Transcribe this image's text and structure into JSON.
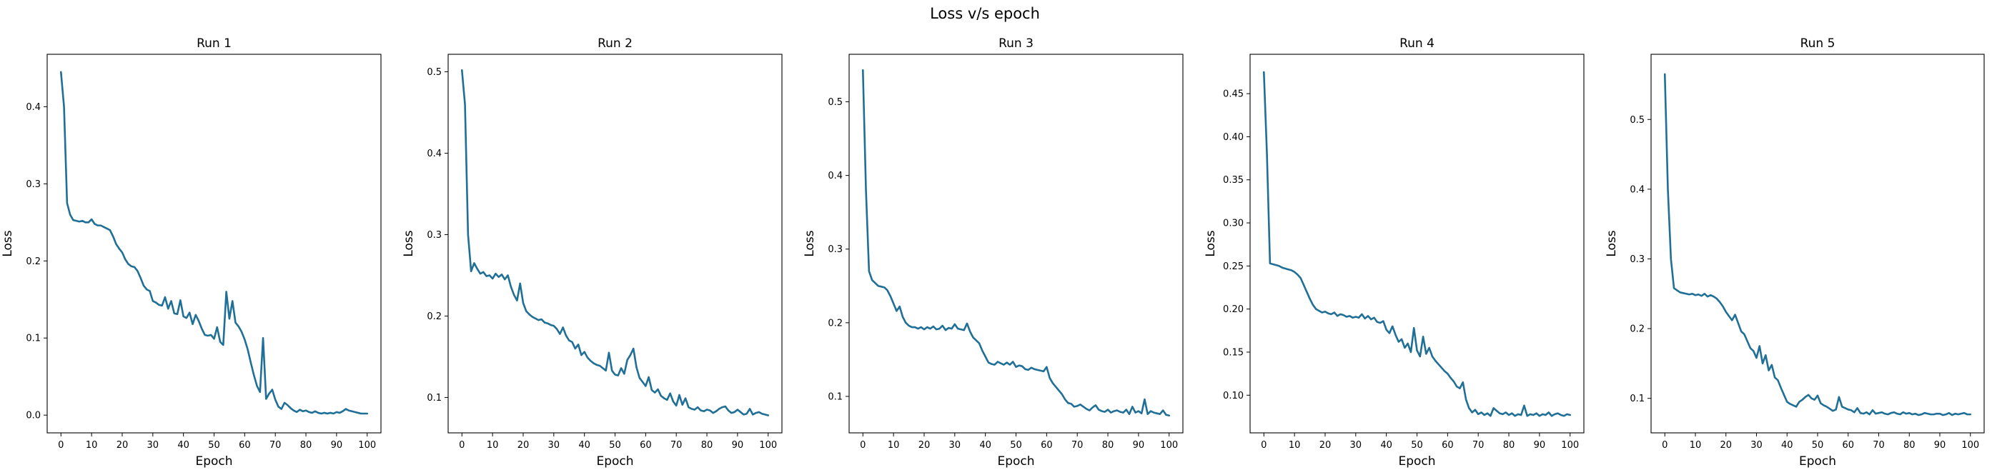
{
  "figure": {
    "title": "Loss v/s epoch"
  },
  "colors": {
    "line": "#1f6f96"
  },
  "chart_data": [
    {
      "type": "line",
      "title": "Run 1",
      "xlabel": "Epoch",
      "ylabel": "Loss",
      "xlim": [
        -4.5,
        104.5
      ],
      "ylim": [
        -0.023,
        0.468
      ],
      "xticks": [
        0,
        10,
        20,
        30,
        40,
        50,
        60,
        70,
        80,
        90,
        100
      ],
      "xtick_labels": [
        "0",
        "10",
        "20",
        "30",
        "40",
        "50",
        "60",
        "70",
        "80",
        "90",
        "100"
      ],
      "yticks": [
        0,
        0.1,
        0.2,
        0.3,
        0.4
      ],
      "ytick_labels": [
        "0.0",
        "0.1",
        "0.2",
        "0.3",
        "0.4"
      ],
      "grid": false,
      "series": [
        {
          "values": [
            0.445,
            0.4,
            0.275,
            0.26,
            0.253,
            0.252,
            0.251,
            0.252,
            0.25,
            0.25,
            0.254,
            0.248,
            0.246,
            0.246,
            0.244,
            0.242,
            0.24,
            0.232,
            0.222,
            0.216,
            0.211,
            0.202,
            0.196,
            0.193,
            0.192,
            0.187,
            0.178,
            0.168,
            0.163,
            0.161,
            0.148,
            0.146,
            0.143,
            0.142,
            0.153,
            0.138,
            0.148,
            0.132,
            0.131,
            0.149,
            0.128,
            0.126,
            0.133,
            0.118,
            0.13,
            0.122,
            0.112,
            0.104,
            0.103,
            0.104,
            0.099,
            0.114,
            0.095,
            0.091,
            0.16,
            0.125,
            0.148,
            0.12,
            0.115,
            0.108,
            0.098,
            0.085,
            0.068,
            0.052,
            0.038,
            0.03,
            0.1,
            0.021,
            0.028,
            0.033,
            0.02,
            0.011,
            0.008,
            0.016,
            0.013,
            0.009,
            0.006,
            0.004,
            0.007,
            0.005,
            0.006,
            0.004,
            0.003,
            0.005,
            0.003,
            0.002,
            0.003,
            0.002,
            0.003,
            0.002,
            0.004,
            0.003,
            0.005,
            0.008,
            0.006,
            0.005,
            0.004,
            0.003,
            0.002,
            0.002,
            0.002
          ]
        }
      ]
    },
    {
      "type": "line",
      "title": "Run 2",
      "xlabel": "Epoch",
      "ylabel": "Loss",
      "xlim": [
        -4.5,
        104.5
      ],
      "ylim": [
        0.0565,
        0.5215
      ],
      "xticks": [
        0,
        10,
        20,
        30,
        40,
        50,
        60,
        70,
        80,
        90,
        100
      ],
      "xtick_labels": [
        "0",
        "10",
        "20",
        "30",
        "40",
        "50",
        "60",
        "70",
        "80",
        "90",
        "100"
      ],
      "yticks": [
        0.1,
        0.2,
        0.3,
        0.4,
        0.5
      ],
      "ytick_labels": [
        "0.1",
        "0.2",
        "0.3",
        "0.4",
        "0.5"
      ],
      "grid": false,
      "series": [
        {
          "values": [
            0.502,
            0.46,
            0.3,
            0.255,
            0.265,
            0.258,
            0.252,
            0.254,
            0.249,
            0.25,
            0.246,
            0.252,
            0.248,
            0.251,
            0.245,
            0.25,
            0.236,
            0.226,
            0.219,
            0.24,
            0.216,
            0.206,
            0.202,
            0.199,
            0.197,
            0.195,
            0.196,
            0.192,
            0.191,
            0.189,
            0.188,
            0.184,
            0.178,
            0.186,
            0.176,
            0.17,
            0.168,
            0.16,
            0.165,
            0.152,
            0.156,
            0.149,
            0.145,
            0.142,
            0.14,
            0.139,
            0.136,
            0.133,
            0.155,
            0.133,
            0.128,
            0.127,
            0.136,
            0.129,
            0.146,
            0.152,
            0.16,
            0.137,
            0.124,
            0.119,
            0.114,
            0.125,
            0.109,
            0.106,
            0.11,
            0.102,
            0.099,
            0.097,
            0.105,
            0.095,
            0.09,
            0.103,
            0.091,
            0.099,
            0.088,
            0.086,
            0.085,
            0.088,
            0.084,
            0.083,
            0.085,
            0.084,
            0.081,
            0.083,
            0.086,
            0.088,
            0.089,
            0.084,
            0.081,
            0.082,
            0.085,
            0.082,
            0.079,
            0.08,
            0.086,
            0.079,
            0.081,
            0.082,
            0.08,
            0.079,
            0.078
          ]
        }
      ]
    },
    {
      "type": "line",
      "title": "Run 3",
      "xlabel": "Epoch",
      "ylabel": "Loss",
      "xlim": [
        -4.5,
        104.5
      ],
      "ylim": [
        0.0505,
        0.5645
      ],
      "xticks": [
        0,
        10,
        20,
        30,
        40,
        50,
        60,
        70,
        80,
        90,
        100
      ],
      "xtick_labels": [
        "0",
        "10",
        "20",
        "30",
        "40",
        "50",
        "60",
        "70",
        "80",
        "90",
        "100"
      ],
      "yticks": [
        0.1,
        0.2,
        0.3,
        0.4,
        0.5
      ],
      "ytick_labels": [
        "0.1",
        "0.2",
        "0.3",
        "0.4",
        "0.5"
      ],
      "grid": false,
      "series": [
        {
          "values": [
            0.543,
            0.38,
            0.27,
            0.258,
            0.254,
            0.25,
            0.249,
            0.248,
            0.244,
            0.236,
            0.226,
            0.216,
            0.222,
            0.208,
            0.2,
            0.196,
            0.194,
            0.194,
            0.192,
            0.194,
            0.191,
            0.194,
            0.192,
            0.195,
            0.191,
            0.192,
            0.196,
            0.19,
            0.193,
            0.192,
            0.198,
            0.192,
            0.191,
            0.19,
            0.199,
            0.188,
            0.18,
            0.176,
            0.172,
            0.162,
            0.154,
            0.146,
            0.144,
            0.143,
            0.147,
            0.145,
            0.143,
            0.146,
            0.143,
            0.147,
            0.14,
            0.142,
            0.141,
            0.137,
            0.136,
            0.139,
            0.137,
            0.136,
            0.135,
            0.134,
            0.14,
            0.125,
            0.118,
            0.113,
            0.108,
            0.103,
            0.096,
            0.091,
            0.09,
            0.086,
            0.087,
            0.089,
            0.086,
            0.083,
            0.081,
            0.085,
            0.088,
            0.082,
            0.08,
            0.079,
            0.082,
            0.078,
            0.08,
            0.081,
            0.079,
            0.078,
            0.082,
            0.076,
            0.086,
            0.078,
            0.08,
            0.077,
            0.096,
            0.076,
            0.08,
            0.078,
            0.077,
            0.076,
            0.081,
            0.075,
            0.074
          ]
        }
      ]
    },
    {
      "type": "line",
      "title": "Run 4",
      "xlabel": "Epoch",
      "ylabel": "Loss",
      "xlim": [
        -4.5,
        104.5
      ],
      "ylim": [
        0.0563,
        0.4957
      ],
      "xticks": [
        0,
        10,
        20,
        30,
        40,
        50,
        60,
        70,
        80,
        90,
        100
      ],
      "xtick_labels": [
        "0",
        "10",
        "20",
        "30",
        "40",
        "50",
        "60",
        "70",
        "80",
        "90",
        "100"
      ],
      "yticks": [
        0.1,
        0.15,
        0.2,
        0.25,
        0.3,
        0.35,
        0.4,
        0.45
      ],
      "ytick_labels": [
        "0.10",
        "0.15",
        "0.20",
        "0.25",
        "0.30",
        "0.35",
        "0.40",
        "0.45"
      ],
      "grid": false,
      "series": [
        {
          "values": [
            0.475,
            0.38,
            0.253,
            0.252,
            0.251,
            0.25,
            0.248,
            0.247,
            0.246,
            0.245,
            0.243,
            0.24,
            0.236,
            0.228,
            0.22,
            0.212,
            0.205,
            0.2,
            0.198,
            0.196,
            0.197,
            0.195,
            0.194,
            0.196,
            0.192,
            0.194,
            0.193,
            0.191,
            0.192,
            0.19,
            0.191,
            0.19,
            0.194,
            0.189,
            0.192,
            0.188,
            0.19,
            0.185,
            0.184,
            0.186,
            0.176,
            0.172,
            0.18,
            0.17,
            0.162,
            0.165,
            0.155,
            0.16,
            0.15,
            0.178,
            0.152,
            0.145,
            0.168,
            0.148,
            0.155,
            0.145,
            0.14,
            0.136,
            0.132,
            0.128,
            0.125,
            0.12,
            0.116,
            0.11,
            0.108,
            0.115,
            0.095,
            0.085,
            0.08,
            0.083,
            0.078,
            0.08,
            0.077,
            0.079,
            0.076,
            0.085,
            0.082,
            0.079,
            0.078,
            0.08,
            0.077,
            0.079,
            0.076,
            0.078,
            0.077,
            0.088,
            0.076,
            0.078,
            0.077,
            0.079,
            0.076,
            0.078,
            0.077,
            0.08,
            0.076,
            0.078,
            0.079,
            0.077,
            0.076,
            0.078,
            0.077
          ]
        }
      ]
    },
    {
      "type": "line",
      "title": "Run 5",
      "xlabel": "Epoch",
      "ylabel": "Loss",
      "xlim": [
        -4.5,
        104.5
      ],
      "ylim": [
        0.0505,
        0.5935
      ],
      "xticks": [
        0,
        10,
        20,
        30,
        40,
        50,
        60,
        70,
        80,
        90,
        100
      ],
      "xtick_labels": [
        "0",
        "10",
        "20",
        "30",
        "40",
        "50",
        "60",
        "70",
        "80",
        "90",
        "100"
      ],
      "yticks": [
        0.1,
        0.2,
        0.3,
        0.4,
        0.5
      ],
      "ytick_labels": [
        "0.1",
        "0.2",
        "0.3",
        "0.4",
        "0.5"
      ],
      "grid": false,
      "series": [
        {
          "values": [
            0.565,
            0.4,
            0.3,
            0.258,
            0.255,
            0.252,
            0.251,
            0.25,
            0.249,
            0.25,
            0.248,
            0.249,
            0.247,
            0.25,
            0.246,
            0.248,
            0.246,
            0.243,
            0.238,
            0.232,
            0.224,
            0.218,
            0.212,
            0.22,
            0.208,
            0.196,
            0.192,
            0.182,
            0.172,
            0.168,
            0.158,
            0.175,
            0.15,
            0.162,
            0.14,
            0.148,
            0.13,
            0.126,
            0.115,
            0.105,
            0.095,
            0.092,
            0.09,
            0.088,
            0.095,
            0.098,
            0.102,
            0.105,
            0.1,
            0.098,
            0.104,
            0.093,
            0.09,
            0.088,
            0.085,
            0.082,
            0.084,
            0.102,
            0.088,
            0.086,
            0.084,
            0.083,
            0.08,
            0.086,
            0.079,
            0.078,
            0.08,
            0.077,
            0.083,
            0.078,
            0.079,
            0.08,
            0.078,
            0.077,
            0.079,
            0.08,
            0.078,
            0.077,
            0.08,
            0.078,
            0.079,
            0.077,
            0.078,
            0.076,
            0.077,
            0.079,
            0.078,
            0.077,
            0.077,
            0.078,
            0.078,
            0.076,
            0.077,
            0.079,
            0.076,
            0.078,
            0.077,
            0.078,
            0.079,
            0.077,
            0.077
          ]
        }
      ]
    }
  ]
}
